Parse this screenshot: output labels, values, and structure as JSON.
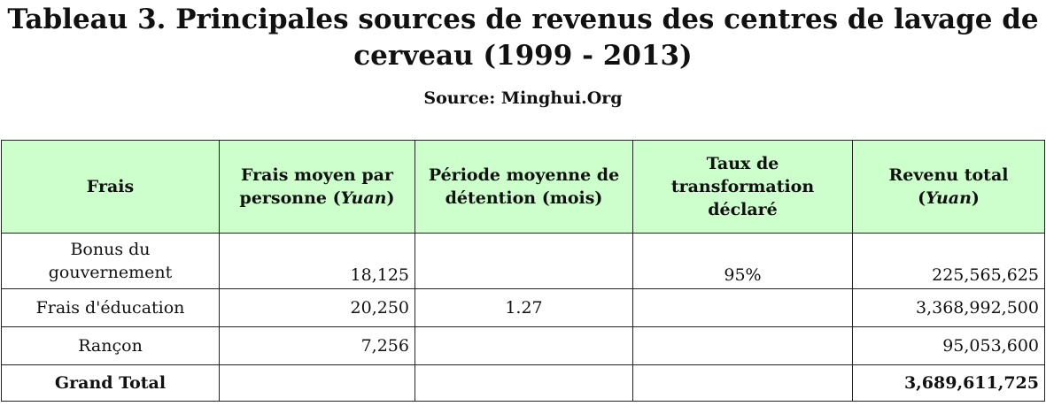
{
  "title": "Tableau 3. Principales sources de revenus des centres de lavage de cerveau (1999 - 2013)",
  "source": "Source: Minghui.Org",
  "table": {
    "headers": {
      "frais": "Frais",
      "frais_moyen_1": "Frais moyen par personne (",
      "frais_moyen_unit": "Yuan",
      "frais_moyen_2": ")",
      "periode": "Période moyenne de détention (mois)",
      "taux": "Taux de transformation déclaré",
      "revenu_1": "Revenu total (",
      "revenu_unit": "Yuan",
      "revenu_2": ")"
    },
    "rows": [
      {
        "frais": "Bonus du gouvernement",
        "frais_moyen": "18,125",
        "periode": "",
        "taux": "95%",
        "revenu": "225,565,625"
      },
      {
        "frais": "Frais d'éducation",
        "frais_moyen": "20,250",
        "periode": "1.27",
        "taux": "",
        "revenu": "3,368,992,500"
      },
      {
        "frais": "Rançon",
        "frais_moyen": "7,256",
        "periode": "",
        "taux": "",
        "revenu": "95,053,600"
      }
    ],
    "total": {
      "label": "Grand Total",
      "revenu": "3,689,611,725"
    }
  }
}
